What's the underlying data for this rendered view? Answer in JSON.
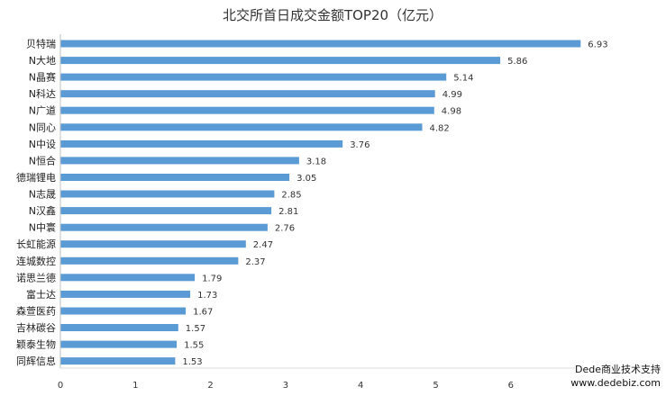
{
  "chart_data": {
    "type": "bar",
    "orientation": "horizontal",
    "title": "北交所首日成交金额TOP20（亿元）",
    "categories": [
      "贝特瑞",
      "N大地",
      "N晶赛",
      "N科达",
      "N广道",
      "N同心",
      "N中设",
      "N恒合",
      "德瑞锂电",
      "N志晟",
      "N汉鑫",
      "N中寰",
      "长虹能源",
      "连城数控",
      "诺思兰德",
      "富士达",
      "森萱医药",
      "吉林碳谷",
      "颖泰生物",
      "同辉信息"
    ],
    "values": [
      6.93,
      5.86,
      5.14,
      4.99,
      4.98,
      4.82,
      3.76,
      3.18,
      3.05,
      2.85,
      2.81,
      2.76,
      2.47,
      2.37,
      1.79,
      1.73,
      1.67,
      1.57,
      1.55,
      1.53
    ],
    "value_labels": [
      "6.93",
      "5.86",
      "5.14",
      "4.99",
      "4.98",
      "4.82",
      "3.76",
      "3.18",
      "3.05",
      "2.85",
      "2.81",
      "2.76",
      "2.47",
      "2.37",
      "1.79",
      "1.73",
      "1.67",
      "1.57",
      "1.55",
      "1.53"
    ],
    "xticks": [
      "0",
      "1",
      "2",
      "3",
      "4",
      "5",
      "6"
    ],
    "xlim": [
      0,
      8
    ],
    "bar_color": "#5B9BD5",
    "grid": false,
    "legend": "none"
  },
  "watermark": {
    "line1": "Dede商业技术支持",
    "line2": "www.dedebiz.com"
  }
}
